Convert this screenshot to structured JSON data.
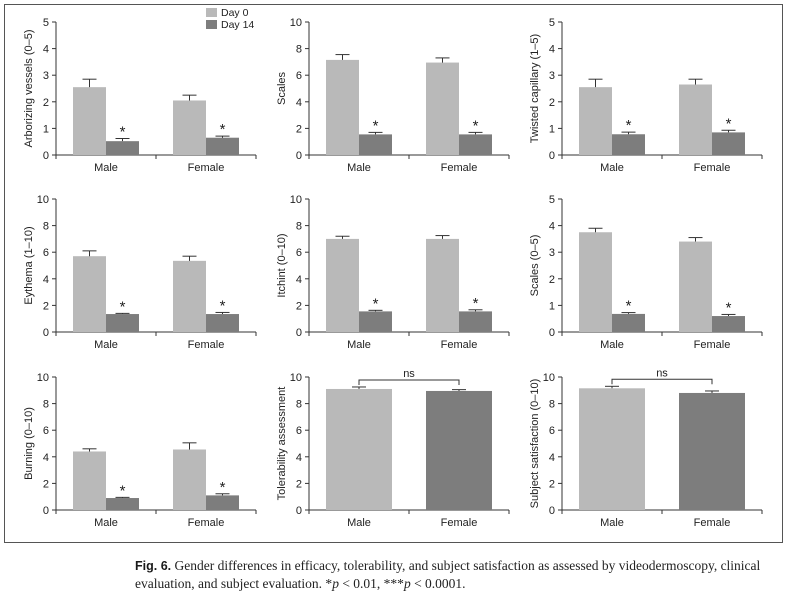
{
  "colors": {
    "day0": "#b9b9b9",
    "day14": "#7d7d7d",
    "combined": "#7d7d7d",
    "axis": "#333333",
    "text": "#222222"
  },
  "legend": [
    {
      "label": "Day 0",
      "color": "#b9b9b9"
    },
    {
      "label": "Day 14",
      "color": "#7d7d7d"
    }
  ],
  "caption": {
    "figure_label": "Fig. 6.",
    "text_html": " Gender differences in efficacy, tolerability, and subject satisfaction as assessed by videodermoscopy, clinical evaluation, and subject evaluation. *<i>p</i> &lt; 0.01, ***<i>p</i> &lt; 0.0001."
  },
  "chart_data": [
    {
      "type": "bar",
      "ylabel": "Arborizing vessels (0–5)",
      "ylim": [
        0,
        5
      ],
      "yticks": [
        0,
        1,
        2,
        3,
        4,
        5
      ],
      "categories": [
        "Male",
        "Female"
      ],
      "series": [
        {
          "name": "Day 0",
          "values": [
            2.55,
            2.05
          ],
          "errors": [
            0.3,
            0.2
          ]
        },
        {
          "name": "Day 14",
          "values": [
            0.52,
            0.65
          ],
          "errors": [
            0.1,
            0.06
          ]
        }
      ],
      "annotations": [
        "*",
        "*"
      ],
      "show_legend": true
    },
    {
      "type": "bar",
      "ylabel": "Scales",
      "ylim": [
        0,
        10
      ],
      "yticks": [
        0,
        2,
        4,
        6,
        8,
        10
      ],
      "categories": [
        "Male",
        "Female"
      ],
      "series": [
        {
          "name": "Day 0",
          "values": [
            7.15,
            6.95
          ],
          "errors": [
            0.4,
            0.35
          ]
        },
        {
          "name": "Day 14",
          "values": [
            1.55,
            1.55
          ],
          "errors": [
            0.15,
            0.15
          ]
        }
      ],
      "annotations": [
        "*",
        "*"
      ]
    },
    {
      "type": "bar",
      "ylabel": "Twisted capillary (1–5)",
      "ylim": [
        0,
        5
      ],
      "yticks": [
        0,
        1,
        2,
        3,
        4,
        5
      ],
      "categories": [
        "Male",
        "Female"
      ],
      "series": [
        {
          "name": "Day 0",
          "values": [
            2.55,
            2.65
          ],
          "errors": [
            0.3,
            0.2
          ]
        },
        {
          "name": "Day 14",
          "values": [
            0.78,
            0.85
          ],
          "errors": [
            0.08,
            0.08
          ]
        }
      ],
      "annotations": [
        "*",
        "*"
      ]
    },
    {
      "type": "bar",
      "ylabel": "Eythema (1–10)",
      "ylim": [
        0,
        10
      ],
      "yticks": [
        0,
        2,
        4,
        6,
        8,
        10
      ],
      "categories": [
        "Male",
        "Female"
      ],
      "series": [
        {
          "name": "Day 0",
          "values": [
            5.7,
            5.35
          ],
          "errors": [
            0.4,
            0.35
          ]
        },
        {
          "name": "Day 14",
          "values": [
            1.35,
            1.35
          ],
          "errors": [
            0.05,
            0.12
          ]
        }
      ],
      "annotations": [
        "*",
        "*"
      ]
    },
    {
      "type": "bar",
      "ylabel": "Itchint (0–10)",
      "ylim": [
        0,
        10
      ],
      "yticks": [
        0,
        2,
        4,
        6,
        8,
        10
      ],
      "categories": [
        "Male",
        "Female"
      ],
      "series": [
        {
          "name": "Day 0",
          "values": [
            7.0,
            7.0
          ],
          "errors": [
            0.2,
            0.25
          ]
        },
        {
          "name": "Day 14",
          "values": [
            1.55,
            1.55
          ],
          "errors": [
            0.08,
            0.12
          ]
        }
      ],
      "annotations": [
        "*",
        "*"
      ]
    },
    {
      "type": "bar",
      "ylabel": "Scales (0–5)",
      "ylim": [
        0,
        5
      ],
      "yticks": [
        0,
        1,
        2,
        3,
        4,
        5
      ],
      "categories": [
        "Male",
        "Female"
      ],
      "series": [
        {
          "name": "Day 0",
          "values": [
            3.75,
            3.4
          ],
          "errors": [
            0.15,
            0.15
          ]
        },
        {
          "name": "Day 14",
          "values": [
            0.68,
            0.6
          ],
          "errors": [
            0.05,
            0.06
          ]
        }
      ],
      "annotations": [
        "*",
        "*"
      ]
    },
    {
      "type": "bar",
      "ylabel": "Burning (0–10)",
      "ylim": [
        0,
        10
      ],
      "yticks": [
        0,
        2,
        4,
        6,
        8,
        10
      ],
      "categories": [
        "Male",
        "Female"
      ],
      "series": [
        {
          "name": "Day 0",
          "values": [
            4.4,
            4.55
          ],
          "errors": [
            0.2,
            0.5
          ]
        },
        {
          "name": "Day 14",
          "values": [
            0.9,
            1.1
          ],
          "errors": [
            0.05,
            0.12
          ]
        }
      ],
      "annotations": [
        "*",
        "*"
      ]
    },
    {
      "type": "bar",
      "ylabel": "Tolerability assessment",
      "ylim": [
        0,
        10
      ],
      "yticks": [
        0,
        2,
        4,
        6,
        8,
        10
      ],
      "categories": [
        "Male",
        "Female"
      ],
      "values": [
        9.1,
        8.95
      ],
      "errors": [
        0.15,
        0.1
      ],
      "significance": "ns"
    },
    {
      "type": "bar",
      "ylabel": "Subject satisfaction (0–10)",
      "ylim": [
        0,
        10
      ],
      "yticks": [
        0,
        2,
        4,
        6,
        8,
        10
      ],
      "categories": [
        "Male",
        "Female"
      ],
      "values": [
        9.15,
        8.8
      ],
      "errors": [
        0.15,
        0.15
      ],
      "significance": "ns"
    }
  ]
}
